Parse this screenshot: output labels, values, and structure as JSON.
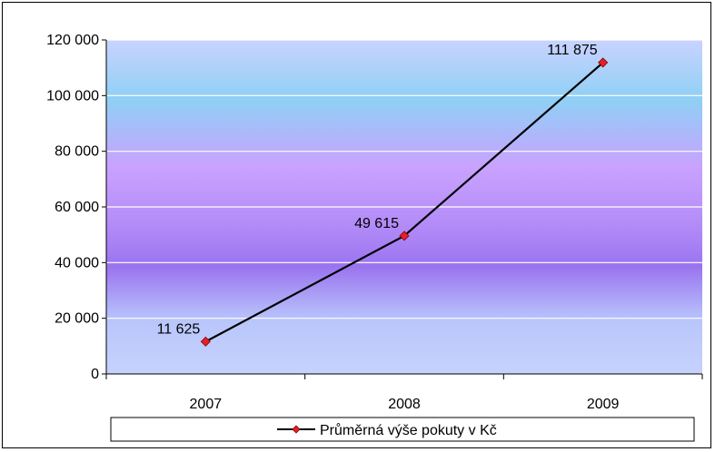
{
  "chart_data": {
    "type": "line",
    "categories": [
      "2007",
      "2008",
      "2009"
    ],
    "series": [
      {
        "name": "Průměrná výše pokuty v Kč",
        "values": [
          11625,
          49615,
          111875
        ],
        "value_labels": [
          "11 625",
          "49 615",
          "111 875"
        ],
        "color": "#000000",
        "marker_color": "#e0202a"
      }
    ],
    "ylim": [
      0,
      120000
    ],
    "y_ticks": [
      0,
      20000,
      40000,
      60000,
      80000,
      100000,
      120000
    ],
    "y_tick_labels": [
      "0",
      "20 000",
      "40 000",
      "60 000",
      "80 000",
      "100 000",
      "120 000"
    ],
    "grid": true,
    "legend": "bottom",
    "background": "vertical gradient blue-purple"
  }
}
